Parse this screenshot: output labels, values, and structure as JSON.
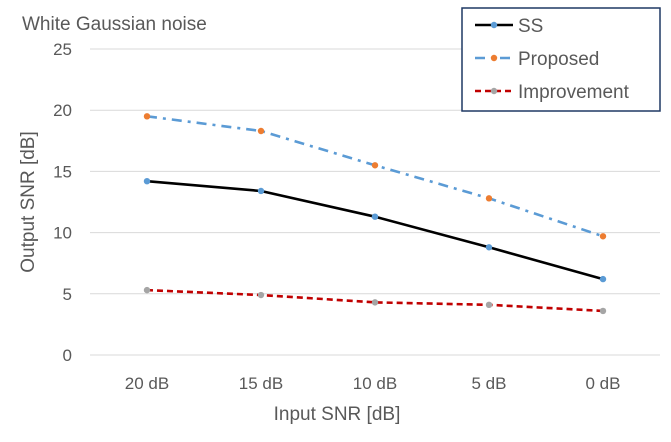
{
  "chart_data": {
    "type": "line",
    "title": "White Gaussian noise",
    "xlabel": "Input SNR [dB]",
    "ylabel": "Output SNR [dB]",
    "categories": [
      "20 dB",
      "15 dB",
      "10 dB",
      "5 dB",
      "0 dB"
    ],
    "ylim": [
      0,
      25
    ],
    "yticks": [
      0,
      5,
      10,
      15,
      20,
      25
    ],
    "grid": true,
    "legend_position": "top-right",
    "series": [
      {
        "name": "SS",
        "values": [
          14.2,
          13.4,
          11.3,
          8.8,
          6.2
        ],
        "color": "#000000",
        "marker_color": "#5b9bd5",
        "line_style": "solid"
      },
      {
        "name": "Proposed",
        "values": [
          19.5,
          18.3,
          15.5,
          12.8,
          9.7
        ],
        "color": "#5b9bd5",
        "marker_color": "#ed7d31",
        "line_style": "dash-dot"
      },
      {
        "name": "Improvement",
        "values": [
          5.3,
          4.9,
          4.3,
          4.1,
          3.6
        ],
        "color": "#c00000",
        "marker_color": "#a5a5a5",
        "line_style": "dashed"
      }
    ]
  }
}
